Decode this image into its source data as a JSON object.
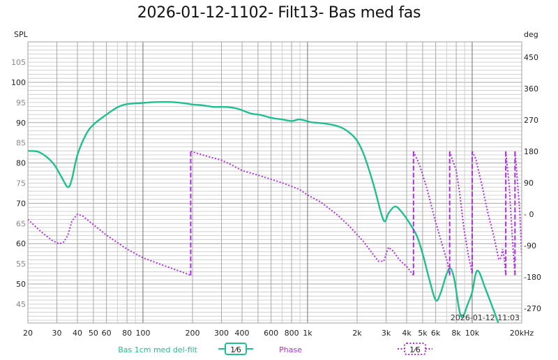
{
  "title": "2026-01-12-1102- Filt13- Bas med fas",
  "left_axis_unit": "SPL",
  "right_axis_unit": "deg",
  "timestamp": "2026-01-12 11:03",
  "colors": {
    "spl": "#1fbf8f",
    "phase": "#b02ee0",
    "grid_minor": "#d0d0d0",
    "grid_major": "#a8a8a8",
    "grid_decade": "#707070"
  },
  "legend": [
    {
      "label": "Bas 1cm med del-filt",
      "smoothing": "1/6",
      "style": "solid",
      "color": "#1fbf8f"
    },
    {
      "label": "Phase",
      "smoothing": "1/6",
      "style": "dotted",
      "color": "#b02ee0"
    }
  ],
  "chart_data": {
    "type": "line",
    "title": "2026-01-12-1102- Filt13- Bas med fas",
    "xlabel": "Hz",
    "ylabel": "SPL",
    "y2label": "deg",
    "xscale": "log",
    "xlim": [
      20,
      20000
    ],
    "ylim": [
      40,
      110
    ],
    "y2lim": [
      -315,
      495
    ],
    "x_tick_labels": [
      "20",
      "30",
      "40",
      "50",
      "60",
      "80",
      "100",
      "200",
      "300",
      "400",
      "600",
      "800",
      "1k",
      "2k",
      "3k",
      "4k",
      "5k",
      "6k",
      "8k",
      "10k",
      "20kHz"
    ],
    "x_ticks": [
      20,
      30,
      40,
      50,
      60,
      80,
      100,
      200,
      300,
      400,
      600,
      800,
      1000,
      2000,
      3000,
      4000,
      5000,
      6000,
      8000,
      10000,
      20000
    ],
    "y_ticks": [
      45,
      50,
      55,
      60,
      65,
      70,
      75,
      80,
      85,
      90,
      95,
      100,
      105
    ],
    "y2_ticks": [
      -270,
      -180,
      -90,
      0,
      90,
      180,
      270,
      360,
      450
    ],
    "grid": true,
    "series": [
      {
        "name": "Bas 1cm med del-filt",
        "axis": "left",
        "smoothing": "1/6",
        "points": [
          [
            20,
            83
          ],
          [
            23,
            82.8
          ],
          [
            26,
            81.5
          ],
          [
            29,
            79.5
          ],
          [
            32,
            76.5
          ],
          [
            35,
            74
          ],
          [
            37,
            76
          ],
          [
            40,
            82
          ],
          [
            45,
            87
          ],
          [
            50,
            89.5
          ],
          [
            60,
            92
          ],
          [
            70,
            93.8
          ],
          [
            80,
            94.6
          ],
          [
            100,
            94.9
          ],
          [
            120,
            95.1
          ],
          [
            150,
            95.1
          ],
          [
            180,
            94.8
          ],
          [
            200,
            94.5
          ],
          [
            230,
            94.3
          ],
          [
            270,
            93.9
          ],
          [
            320,
            93.9
          ],
          [
            380,
            93.4
          ],
          [
            450,
            92.3
          ],
          [
            520,
            91.9
          ],
          [
            600,
            91.2
          ],
          [
            700,
            90.8
          ],
          [
            800,
            90.4
          ],
          [
            880,
            90.8
          ],
          [
            950,
            90.6
          ],
          [
            1050,
            90.1
          ],
          [
            1200,
            89.9
          ],
          [
            1400,
            89.5
          ],
          [
            1600,
            88.8
          ],
          [
            1800,
            87.5
          ],
          [
            2000,
            85.5
          ],
          [
            2200,
            82
          ],
          [
            2500,
            75
          ],
          [
            2800,
            67.5
          ],
          [
            2950,
            65.5
          ],
          [
            3100,
            67.5
          ],
          [
            3400,
            69.2
          ],
          [
            3700,
            68
          ],
          [
            4100,
            65.5
          ],
          [
            4600,
            62
          ],
          [
            5000,
            57.5
          ],
          [
            5500,
            51
          ],
          [
            6000,
            46
          ],
          [
            6400,
            47.5
          ],
          [
            7000,
            52.5
          ],
          [
            7400,
            53.8
          ],
          [
            7800,
            51
          ],
          [
            8400,
            43
          ],
          [
            8800,
            42
          ],
          [
            9400,
            45
          ],
          [
            10000,
            48
          ],
          [
            10500,
            52.5
          ],
          [
            11000,
            53
          ],
          [
            12000,
            49
          ],
          [
            13500,
            43.5
          ],
          [
            14500,
            40
          ]
        ]
      },
      {
        "name": "Phase",
        "axis": "right",
        "smoothing": "1/6",
        "points": [
          [
            20,
            -15
          ],
          [
            24,
            -50
          ],
          [
            28,
            -75
          ],
          [
            31,
            -85
          ],
          [
            33,
            -80
          ],
          [
            35,
            -60
          ],
          [
            37,
            -20
          ],
          [
            40,
            0
          ],
          [
            43,
            -5
          ],
          [
            50,
            -30
          ],
          [
            60,
            -60
          ],
          [
            80,
            -100
          ],
          [
            100,
            -125
          ],
          [
            130,
            -145
          ],
          [
            160,
            -160
          ],
          [
            195,
            -175
          ],
          [
            195,
            180
          ],
          [
            250,
            165
          ],
          [
            300,
            155
          ],
          [
            350,
            140
          ],
          [
            400,
            125
          ],
          [
            500,
            112
          ],
          [
            600,
            100
          ],
          [
            700,
            90
          ],
          [
            800,
            80
          ],
          [
            900,
            70
          ],
          [
            1000,
            55
          ],
          [
            1200,
            35
          ],
          [
            1500,
            0
          ],
          [
            1800,
            -35
          ],
          [
            2200,
            -80
          ],
          [
            2500,
            -115
          ],
          [
            2700,
            -135
          ],
          [
            2900,
            -135
          ],
          [
            3100,
            -95
          ],
          [
            3300,
            -105
          ],
          [
            3600,
            -130
          ],
          [
            4000,
            -150
          ],
          [
            4400,
            -175
          ],
          [
            4400,
            180
          ],
          [
            4800,
            140
          ],
          [
            5300,
            75
          ],
          [
            5900,
            -10
          ],
          [
            6500,
            -80
          ],
          [
            7100,
            -140
          ],
          [
            7300,
            -175
          ],
          [
            7300,
            180
          ],
          [
            7600,
            155
          ],
          [
            8000,
            125
          ],
          [
            8400,
            60
          ],
          [
            8900,
            -40
          ],
          [
            9500,
            -120
          ],
          [
            10000,
            -170
          ],
          [
            10000,
            180
          ],
          [
            10500,
            160
          ],
          [
            11500,
            80
          ],
          [
            12500,
            0
          ],
          [
            13500,
            -60
          ],
          [
            14500,
            -130
          ],
          [
            15000,
            -125
          ],
          [
            15300,
            -100
          ],
          [
            15700,
            -130
          ],
          [
            16000,
            -175
          ],
          [
            16000,
            180
          ],
          [
            16800,
            80
          ],
          [
            17500,
            -60
          ],
          [
            18200,
            -175
          ],
          [
            18200,
            180
          ],
          [
            18800,
            100
          ],
          [
            19500,
            0
          ],
          [
            20000,
            -120
          ]
        ]
      }
    ]
  }
}
